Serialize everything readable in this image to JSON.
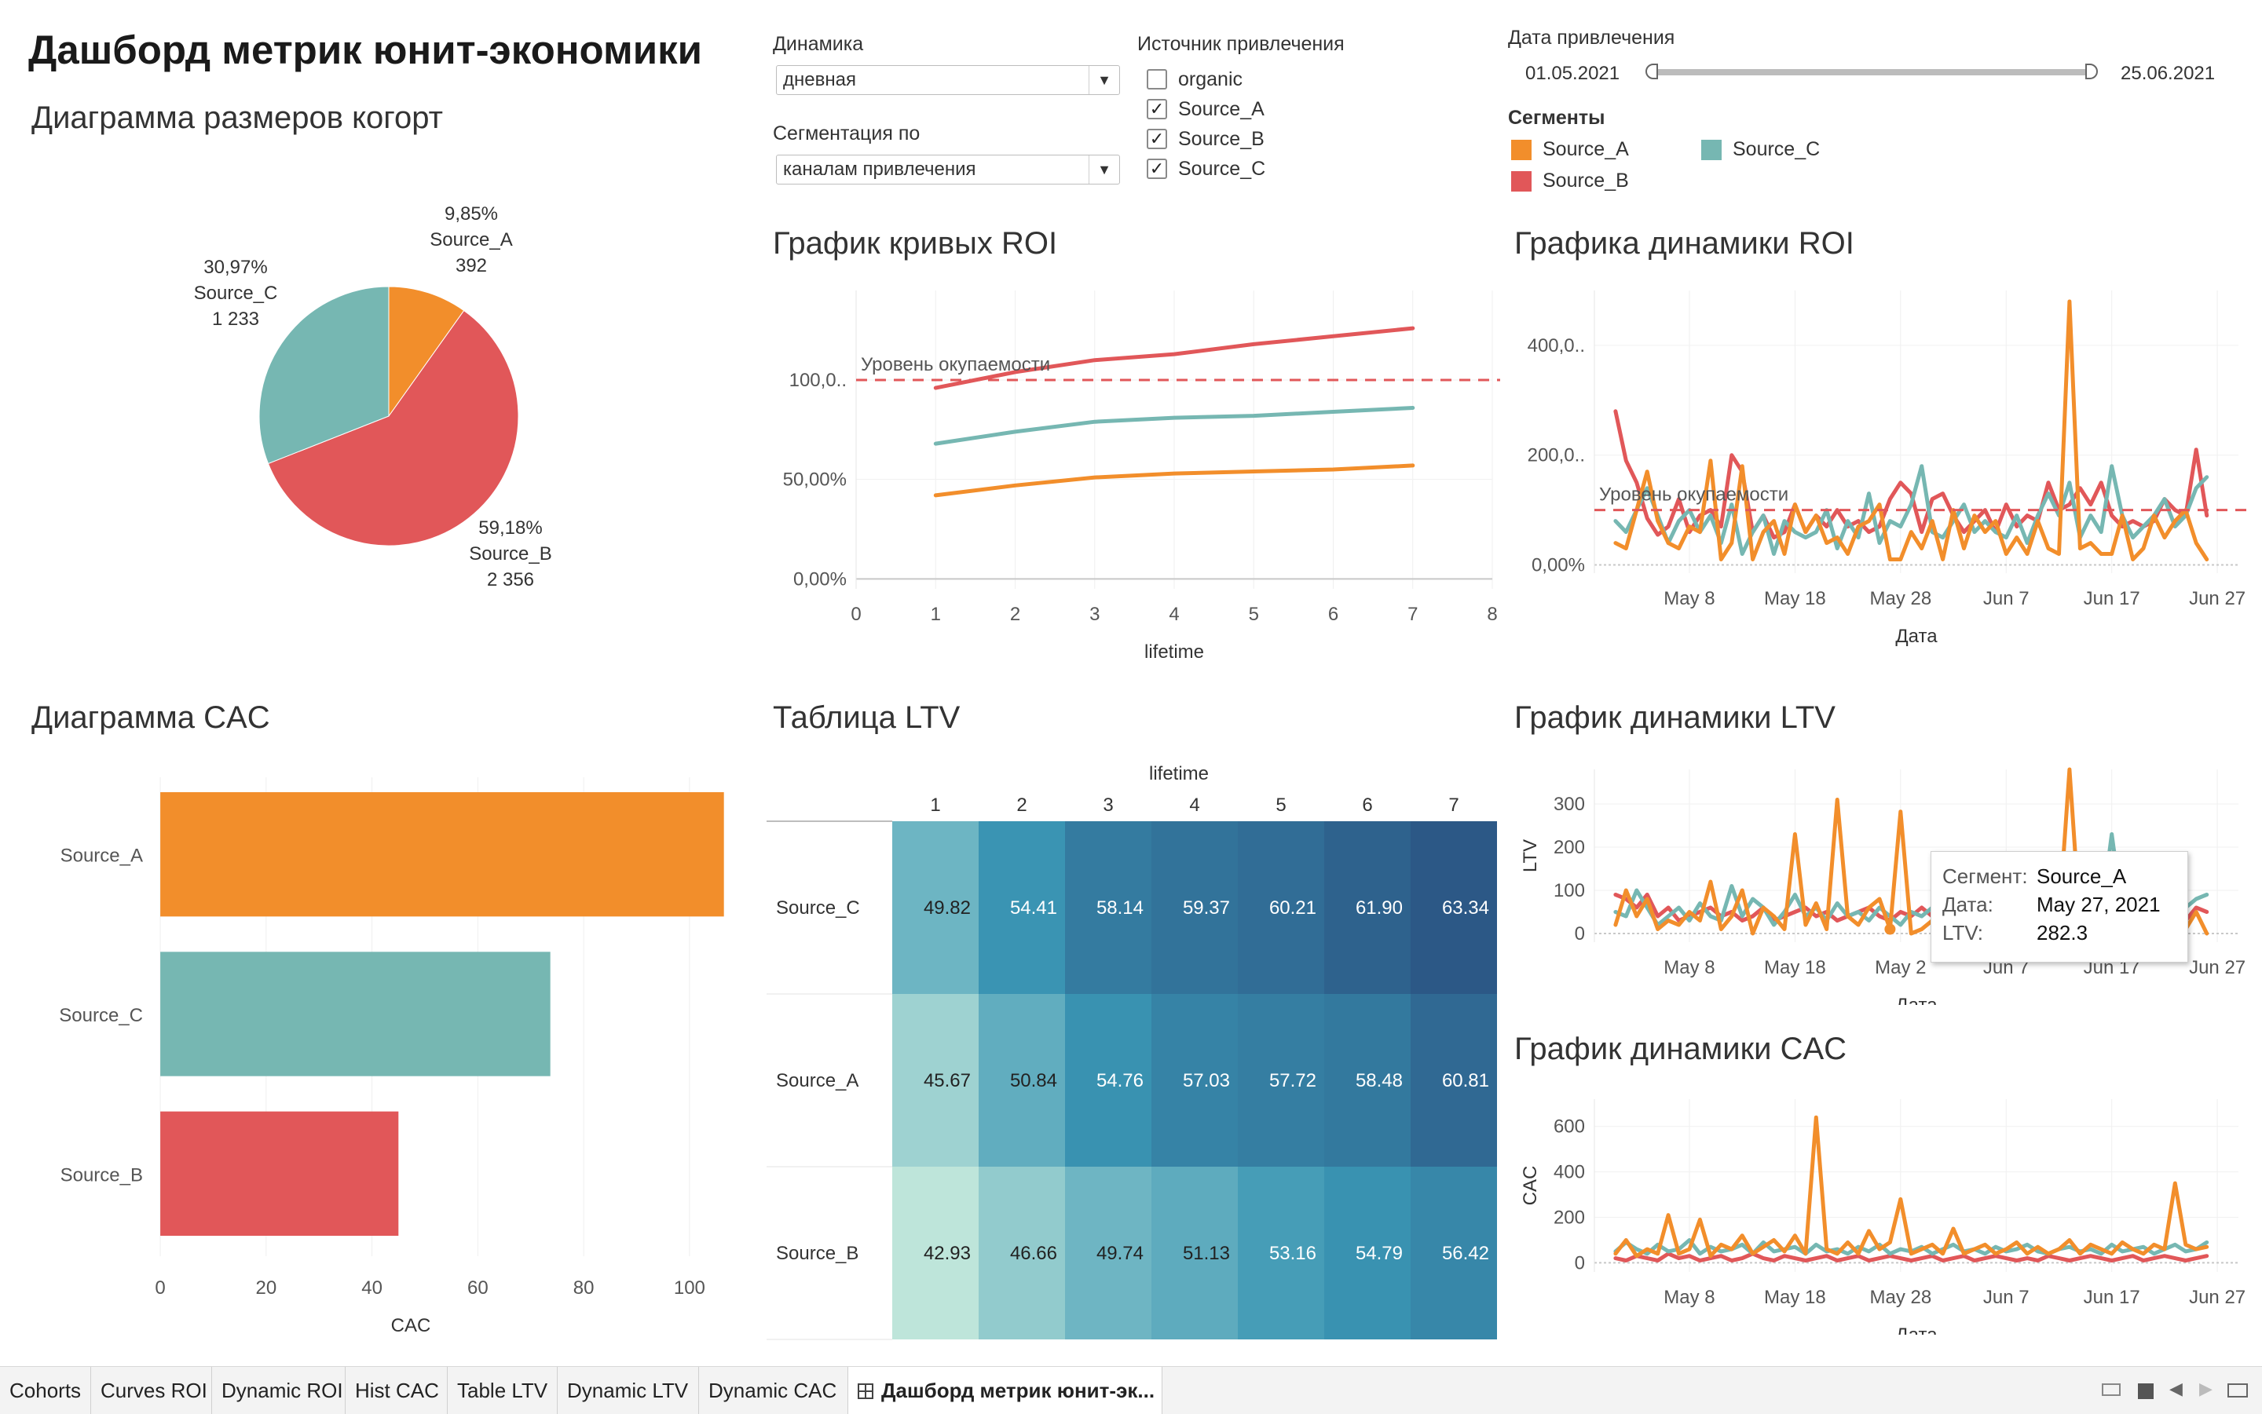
{
  "dashboard": {
    "title": "Дашборд метрик юнит-экономики"
  },
  "colors": {
    "source_a": "#F28E2B",
    "source_b": "#E15759",
    "source_c": "#76B7B2",
    "breakeven": "#E15759"
  },
  "controls": {
    "dynamics": {
      "label": "Динамика",
      "value": "дневная"
    },
    "segmentation": {
      "label": "Сегментация по",
      "value": "каналам привлечения"
    },
    "source_filter": {
      "label": "Источник привлечения",
      "items": [
        {
          "label": "organic",
          "checked": false,
          "mark": ""
        },
        {
          "label": "Source_A",
          "checked": true,
          "mark": "✓"
        },
        {
          "label": "Source_B",
          "checked": true,
          "mark": "✓"
        },
        {
          "label": "Source_C",
          "checked": true,
          "mark": "✓"
        }
      ]
    },
    "date_filter": {
      "label": "Дата привлечения",
      "start": "01.05.2021",
      "end": "25.06.2021"
    },
    "segments_legend": {
      "label": "Сегменты",
      "items": [
        {
          "label": "Source_A",
          "color": "#F28E2B"
        },
        {
          "label": "Source_B",
          "color": "#E15759"
        },
        {
          "label": "Source_C",
          "color": "#76B7B2"
        }
      ]
    }
  },
  "cohort_sizes": {
    "title": "Диаграмма размеров когорт",
    "chart_data": {
      "type": "pie",
      "slices": [
        {
          "name": "Source_A",
          "percent": "9,85%",
          "count": "392",
          "value": 392,
          "color": "#F28E2B"
        },
        {
          "name": "Source_B",
          "percent": "59,18%",
          "count": "2 356",
          "value": 2356,
          "color": "#E15759"
        },
        {
          "name": "Source_C",
          "percent": "30,97%",
          "count": "1 233",
          "value": 1233,
          "color": "#76B7B2"
        }
      ]
    }
  },
  "roi_curves": {
    "title": "График кривых  ROI",
    "breakeven_label": "Уровень окупаемости",
    "chart_data": {
      "type": "line",
      "xlabel": "lifetime",
      "x_ticks": [
        "0",
        "1",
        "2",
        "3",
        "4",
        "5",
        "6",
        "7",
        "8"
      ],
      "y_ticks": [
        "0,00%",
        "50,00%",
        "100,0.."
      ],
      "xlim": [
        0,
        8
      ],
      "ylim": [
        -5,
        145
      ],
      "breakeven": 100,
      "x": [
        1,
        2,
        3,
        4,
        5,
        6,
        7
      ],
      "series": [
        {
          "name": "Source_B",
          "color": "#E15759",
          "values": [
            96,
            104,
            110,
            113,
            118,
            122,
            126
          ]
        },
        {
          "name": "Source_C",
          "color": "#76B7B2",
          "values": [
            68,
            74,
            79,
            81,
            82,
            84,
            86
          ]
        },
        {
          "name": "Source_A",
          "color": "#F28E2B",
          "values": [
            42,
            47,
            51,
            53,
            54,
            55,
            57
          ]
        }
      ]
    }
  },
  "roi_dynamics": {
    "title": "Графика динамики ROI",
    "breakeven_label": "Уровень окупаемости",
    "chart_data": {
      "type": "line",
      "xlabel": "Дата",
      "x_ticks": [
        "May 8",
        "May 18",
        "May 28",
        "Jun 7",
        "Jun 17",
        "Jun 27"
      ],
      "x_tick_days": [
        7,
        17,
        27,
        37,
        47,
        57
      ],
      "y_ticks": [
        "0,00%",
        "200,0..",
        "400,0.."
      ],
      "xlim": [
        -2,
        59
      ],
      "ylim": [
        -15,
        500
      ],
      "breakeven": 100,
      "x_start_day": 0,
      "series": [
        {
          "name": "Source_B",
          "color": "#E15759",
          "values": [
            280,
            190,
            150,
            85,
            55,
            70,
            120,
            60,
            90,
            100,
            70,
            200,
            170,
            60,
            90,
            50,
            60,
            110,
            60,
            90,
            70,
            100,
            70,
            80,
            60,
            70,
            120,
            150,
            130,
            60,
            120,
            130,
            90,
            60,
            80,
            100,
            60,
            110,
            70,
            90,
            80,
            150,
            100,
            110,
            140,
            110,
            150,
            90,
            70,
            80,
            70,
            80,
            120,
            100,
            90,
            210,
            90
          ]
        },
        {
          "name": "Source_C",
          "color": "#76B7B2",
          "values": [
            80,
            60,
            100,
            140,
            90,
            40,
            80,
            100,
            60,
            90,
            40,
            110,
            20,
            60,
            90,
            20,
            80,
            60,
            50,
            60,
            100,
            30,
            80,
            50,
            130,
            40,
            80,
            70,
            110,
            180,
            60,
            50,
            80,
            110,
            60,
            80,
            60,
            50,
            90,
            40,
            90,
            130,
            90,
            150,
            50,
            90,
            60,
            180,
            90,
            50,
            70,
            90,
            120,
            70,
            90,
            140,
            160
          ]
        },
        {
          "name": "Source_A",
          "color": "#F28E2B",
          "values": [
            40,
            30,
            100,
            170,
            80,
            40,
            30,
            70,
            60,
            190,
            10,
            40,
            180,
            10,
            60,
            80,
            20,
            110,
            60,
            90,
            40,
            50,
            20,
            70,
            80,
            110,
            10,
            10,
            60,
            30,
            80,
            10,
            100,
            30,
            90,
            60,
            80,
            20,
            50,
            20,
            80,
            30,
            20,
            480,
            30,
            40,
            20,
            20,
            90,
            10,
            30,
            90,
            50,
            80,
            100,
            40,
            10
          ]
        }
      ]
    }
  },
  "cac_bars": {
    "title": "Диаграмма CAC",
    "chart_data": {
      "type": "bar",
      "orientation": "horizontal",
      "xlabel": "CAC",
      "categories": [
        "Source_A",
        "Source_C",
        "Source_B"
      ],
      "values": [
        106.5,
        73.7,
        45.0
      ],
      "colors": [
        "#F28E2B",
        "#76B7B2",
        "#E15759"
      ],
      "x_ticks": [
        "0",
        "20",
        "40",
        "60",
        "80",
        "100"
      ],
      "xlim": [
        -1.5,
        111
      ]
    }
  },
  "ltv_table": {
    "title": "Таблица LTV",
    "chart_data": {
      "type": "heatmap",
      "column_header": "lifetime",
      "columns": [
        "1",
        "2",
        "3",
        "4",
        "5",
        "6",
        "7"
      ],
      "rows": [
        {
          "label": "Source_C",
          "values": [
            "49.82",
            "54.41",
            "58.14",
            "59.37",
            "60.21",
            "61.90",
            "63.34"
          ]
        },
        {
          "label": "Source_A",
          "values": [
            "45.67",
            "50.84",
            "54.76",
            "57.03",
            "57.72",
            "58.48",
            "60.81"
          ]
        },
        {
          "label": "Source_B",
          "values": [
            "42.93",
            "46.66",
            "49.74",
            "51.13",
            "53.16",
            "54.79",
            "56.42"
          ]
        }
      ]
    }
  },
  "ltv_dynamics": {
    "title": "График динамики LTV",
    "chart_data": {
      "type": "line",
      "xlabel": "Дата",
      "ylabel": "LTV",
      "x_ticks": [
        "May 8",
        "May 18",
        "May 2",
        "Jun 7",
        "Jun 17",
        "Jun 27"
      ],
      "x_tick_days": [
        7,
        17,
        27,
        37,
        47,
        57
      ],
      "y_ticks": [
        "0",
        "100",
        "200",
        "300"
      ],
      "xlim": [
        -2,
        59
      ],
      "ylim": [
        -20,
        380
      ],
      "x_start_day": 0,
      "series": [
        {
          "name": "Source_B",
          "color": "#E15759",
          "values": [
            90,
            80,
            60,
            90,
            40,
            60,
            30,
            40,
            50,
            60,
            40,
            50,
            30,
            40,
            60,
            30,
            40,
            50,
            60,
            40,
            50,
            30,
            40,
            50,
            60,
            40,
            30,
            50,
            40,
            60,
            40,
            50,
            30,
            40,
            60,
            50,
            40,
            30,
            50,
            60,
            40,
            50,
            30,
            40,
            60,
            50,
            40,
            60,
            30,
            40,
            50,
            60,
            40,
            50,
            30,
            60,
            50
          ]
        },
        {
          "name": "Source_C",
          "color": "#76B7B2",
          "values": [
            50,
            40,
            100,
            60,
            20,
            40,
            60,
            30,
            70,
            40,
            30,
            110,
            40,
            80,
            60,
            20,
            50,
            90,
            40,
            60,
            30,
            70,
            40,
            50,
            30,
            60,
            40,
            20,
            50,
            40,
            60,
            30,
            80,
            40,
            30,
            50,
            40,
            60,
            30,
            50,
            40,
            60,
            30,
            40,
            50,
            60,
            40,
            230,
            50,
            30,
            40,
            60,
            40,
            50,
            60,
            80,
            90
          ]
        },
        {
          "name": "Source_A",
          "color": "#F28E2B",
          "values": [
            20,
            100,
            40,
            80,
            10,
            30,
            20,
            50,
            30,
            120,
            10,
            40,
            100,
            0,
            60,
            40,
            10,
            230,
            20,
            70,
            10,
            310,
            40,
            20,
            60,
            80,
            10,
            282.3,
            0,
            10,
            30,
            60,
            20,
            40,
            0,
            60,
            30,
            20,
            40,
            0,
            70,
            20,
            30,
            380,
            20,
            40,
            10,
            60,
            0,
            20,
            40,
            60,
            0,
            80,
            10,
            50,
            0
          ]
        }
      ],
      "highlight": {
        "series": "Source_A",
        "day": 26
      }
    },
    "tooltip": {
      "segment_label": "Сегмент:",
      "segment_value": "Source_A",
      "date_label": "Дата:",
      "date_value": "May 27, 2021",
      "ltv_label": "LTV:",
      "ltv_value": "282.3"
    }
  },
  "cac_dynamics": {
    "title": "График динамики CAC",
    "chart_data": {
      "type": "line",
      "xlabel": "Дата",
      "ylabel": "CAC",
      "x_ticks": [
        "May 8",
        "May 18",
        "May 28",
        "Jun 7",
        "Jun 17",
        "Jun 27"
      ],
      "x_tick_days": [
        7,
        17,
        27,
        37,
        47,
        57
      ],
      "y_ticks": [
        "0",
        "200",
        "400",
        "600"
      ],
      "xlim": [
        -2,
        59
      ],
      "ylim": [
        -40,
        720
      ],
      "x_start_day": 0,
      "series": [
        {
          "name": "Source_B",
          "color": "#E15759",
          "values": [
            20,
            10,
            30,
            20,
            10,
            40,
            20,
            30,
            10,
            20,
            30,
            10,
            20,
            40,
            20,
            10,
            30,
            20,
            10,
            20,
            30,
            10,
            20,
            30,
            10,
            20,
            30,
            20,
            10,
            20,
            30,
            10,
            20,
            30,
            10,
            20,
            30,
            20,
            10,
            20,
            10,
            30,
            20,
            10,
            20,
            30,
            20,
            10,
            20,
            30,
            10,
            20,
            30,
            20,
            10,
            20,
            30
          ]
        },
        {
          "name": "Source_C",
          "color": "#76B7B2",
          "values": [
            50,
            90,
            60,
            40,
            80,
            50,
            60,
            100,
            40,
            70,
            50,
            60,
            80,
            40,
            90,
            50,
            60,
            70,
            40,
            80,
            50,
            60,
            40,
            70,
            50,
            80,
            40,
            60,
            50,
            70,
            40,
            60,
            80,
            50,
            60,
            40,
            70,
            50,
            60,
            80,
            50,
            40,
            60,
            70,
            50,
            60,
            40,
            80,
            50,
            60,
            70,
            40,
            60,
            80,
            50,
            60,
            90
          ]
        },
        {
          "name": "Source_A",
          "color": "#F28E2B",
          "values": [
            40,
            100,
            30,
            60,
            40,
            210,
            40,
            60,
            190,
            30,
            80,
            60,
            120,
            40,
            70,
            100,
            50,
            120,
            40,
            640,
            60,
            40,
            90,
            40,
            140,
            60,
            90,
            280,
            40,
            60,
            80,
            40,
            150,
            40,
            60,
            80,
            40,
            60,
            90,
            40,
            70,
            40,
            60,
            100,
            40,
            80,
            60,
            40,
            90,
            60,
            40,
            80,
            60,
            350,
            80,
            60,
            70
          ]
        }
      ]
    }
  },
  "tabs": {
    "items": [
      {
        "label": "Cohorts"
      },
      {
        "label": "Curves ROI"
      },
      {
        "label": "Dynamic ROI"
      },
      {
        "label": "Hist CAC"
      },
      {
        "label": "Table LTV"
      },
      {
        "label": "Dynamic LTV"
      },
      {
        "label": "Dynamic CAC"
      },
      {
        "label": "Дашборд метрик юнит-эк..."
      }
    ]
  }
}
